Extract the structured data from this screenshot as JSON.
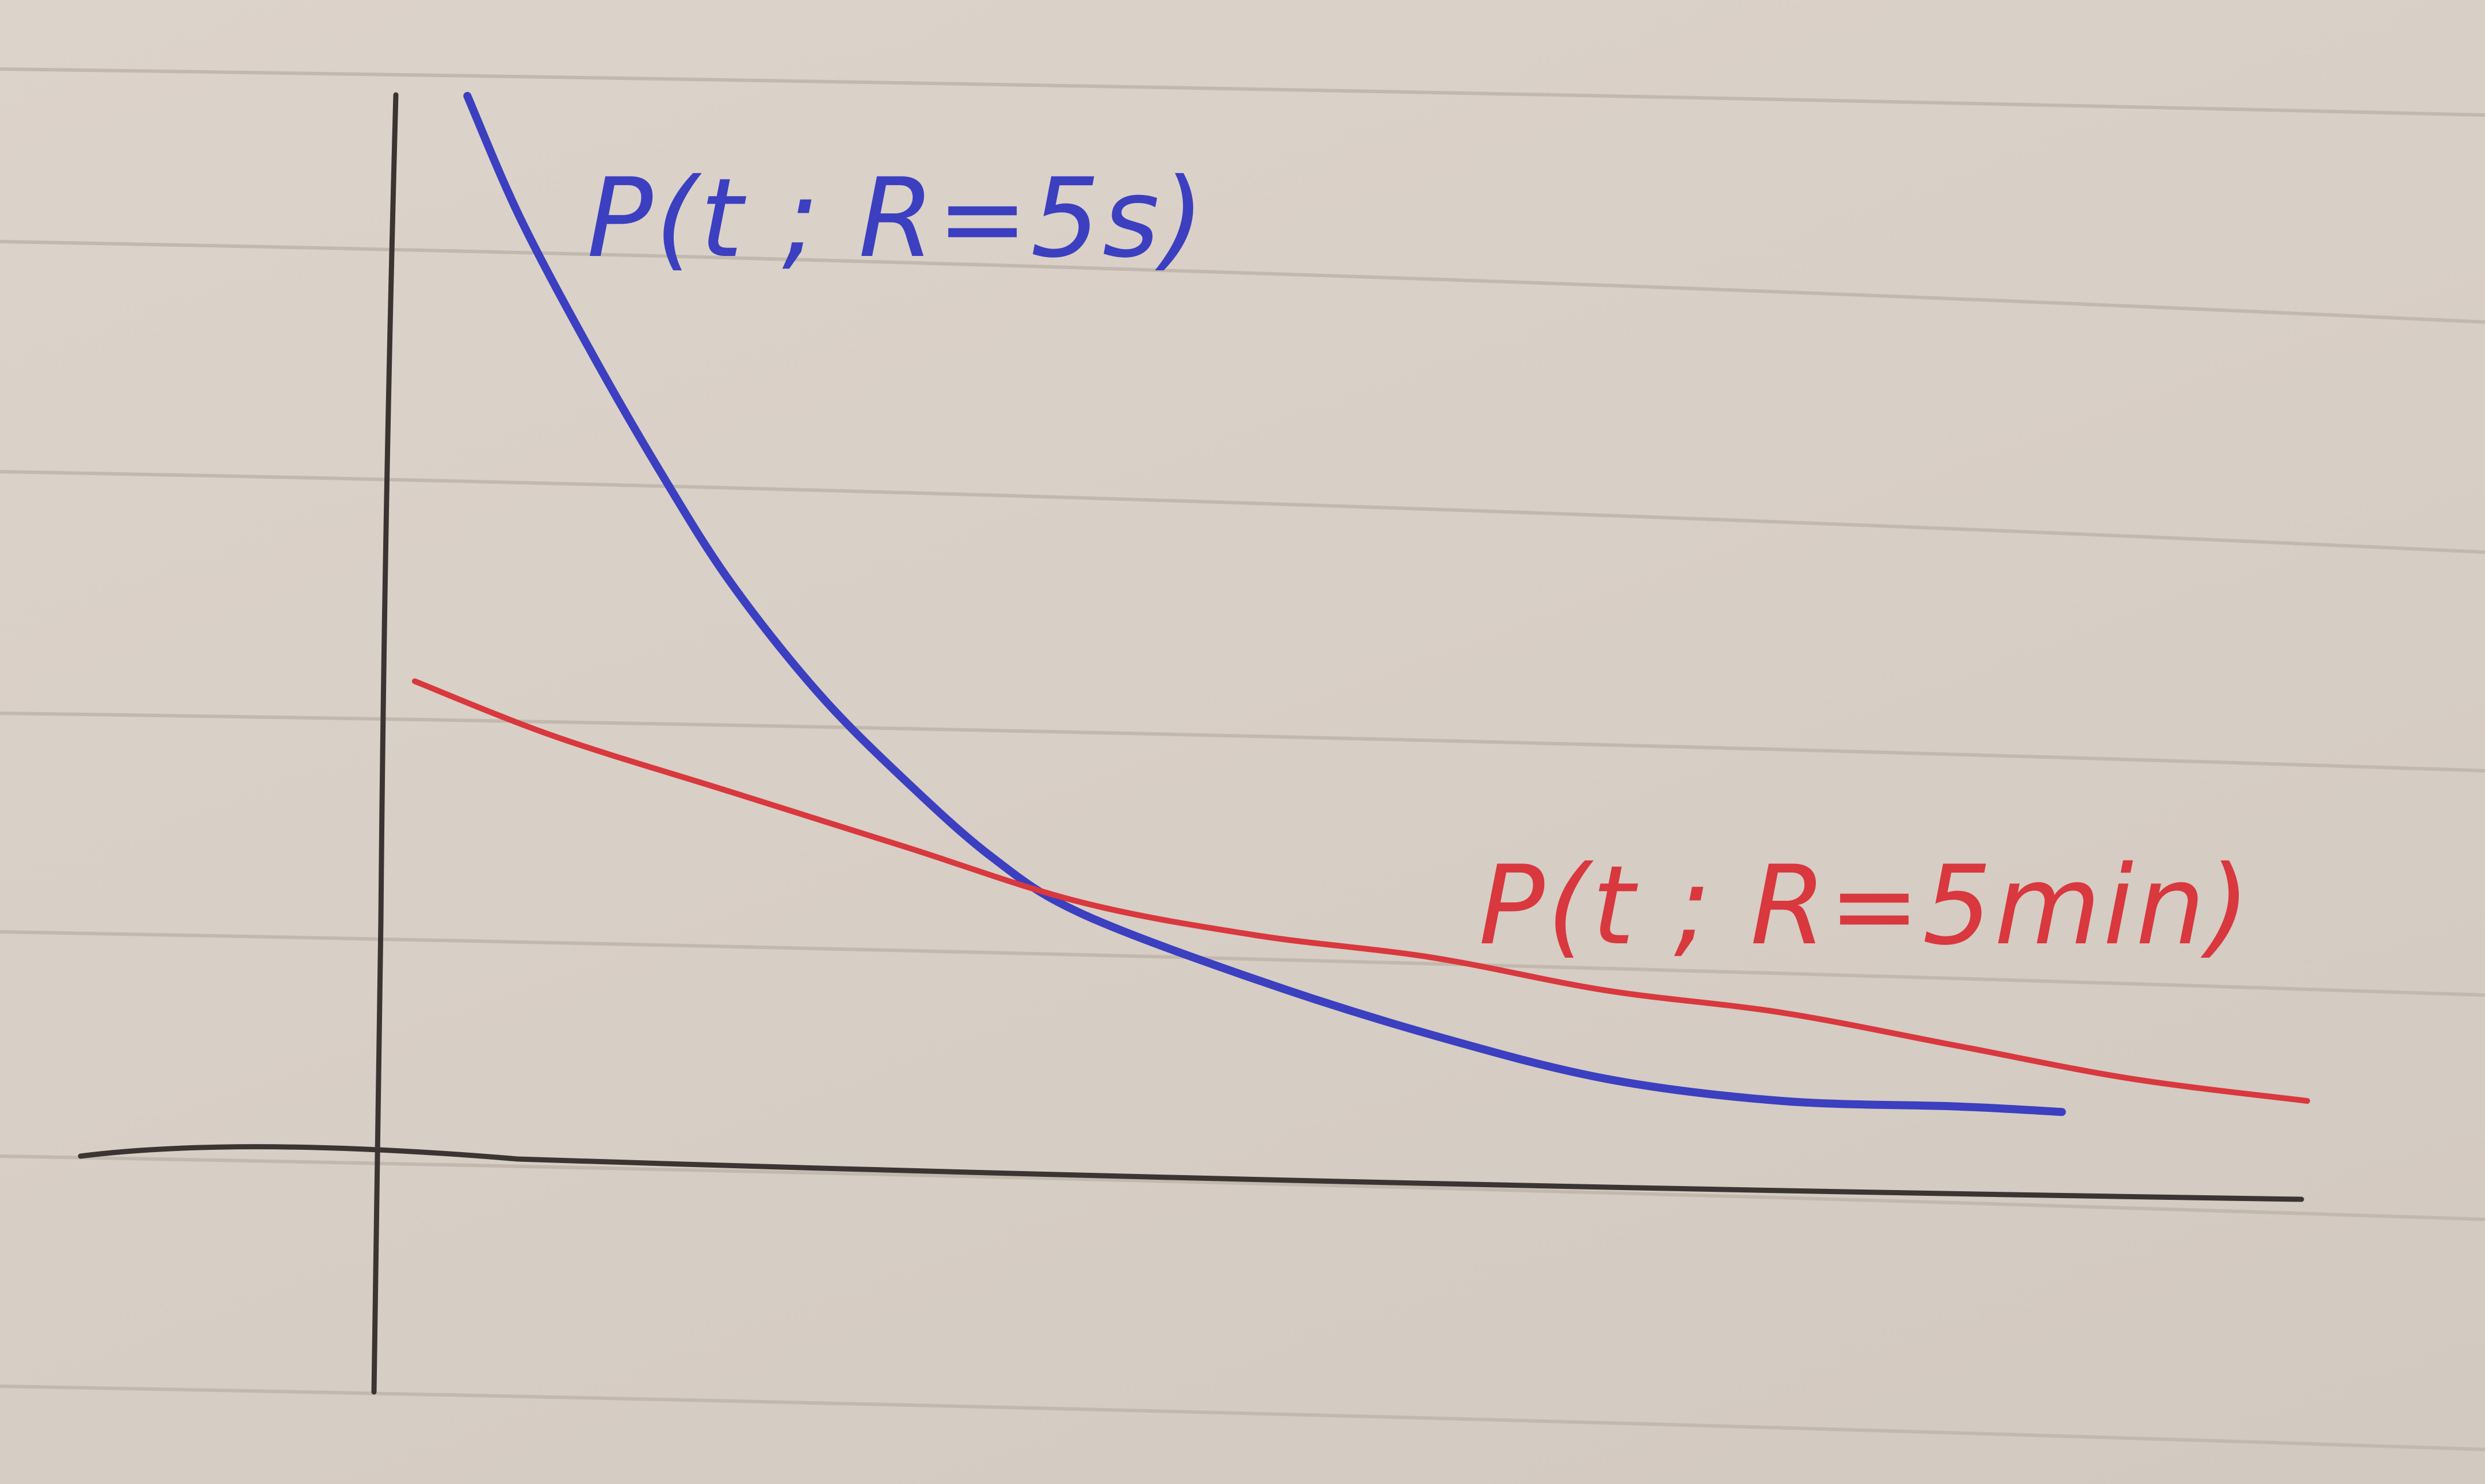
{
  "chart_data": {
    "type": "line",
    "title": "",
    "xlabel": "",
    "ylabel": "",
    "xlim": [
      0,
      10
    ],
    "ylim": [
      0,
      10
    ],
    "grid": false,
    "legend": "none",
    "series": [
      {
        "name": "P(t ; R=5s)",
        "color": "#3b3fc0",
        "x": [
          0.5,
          0.8,
          1.2,
          1.6,
          2.0,
          2.5,
          3.0,
          3.5,
          4.0,
          5.0,
          6.0,
          7.0,
          8.0,
          9.0,
          9.6
        ],
        "y": [
          9.6,
          8.5,
          7.3,
          6.2,
          5.2,
          4.2,
          3.4,
          2.7,
          2.2,
          1.6,
          1.1,
          0.7,
          0.5,
          0.45,
          0.4
        ]
      },
      {
        "name": "P(t ; R=5min)",
        "color": "#d8383e",
        "x": [
          0.2,
          1.0,
          2.0,
          3.0,
          4.0,
          5.0,
          6.0,
          7.0,
          8.0,
          9.0,
          10.0,
          11.0
        ],
        "y": [
          4.3,
          3.8,
          3.3,
          2.8,
          2.3,
          2.0,
          1.8,
          1.5,
          1.3,
          1.0,
          0.7,
          0.5
        ]
      }
    ]
  }
}
